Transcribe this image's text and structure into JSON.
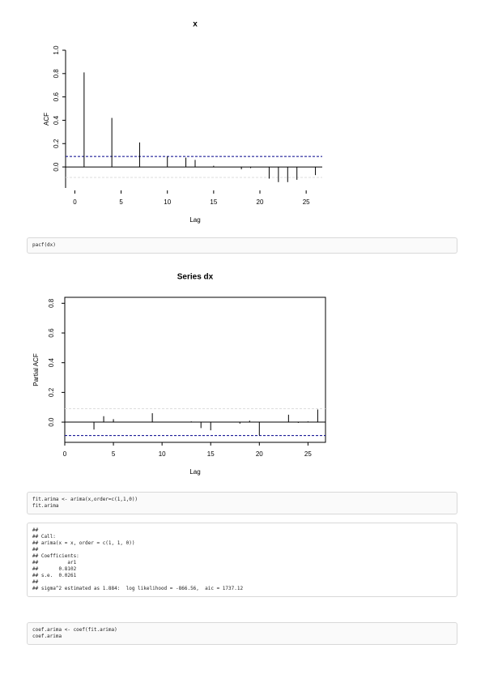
{
  "chart_data": [
    {
      "type": "stem",
      "title": "x",
      "xlabel": "Lag",
      "ylabel": "ACF",
      "color": "#000000",
      "x": [
        1,
        2,
        3,
        4,
        5,
        6,
        7,
        8,
        9,
        10,
        11,
        12,
        13,
        14,
        15,
        16,
        17,
        18,
        19,
        20,
        21,
        22,
        23,
        24,
        25,
        26
      ],
      "values": [
        0.81,
        0,
        0,
        0.42,
        0,
        0,
        0.21,
        0,
        0,
        0.09,
        0,
        0.08,
        0.06,
        0,
        0.01,
        0,
        0,
        -0.02,
        -0.01,
        0,
        -0.1,
        -0.13,
        -0.13,
        -0.11,
        0,
        -0.07
      ],
      "xlim": [
        -1,
        27
      ],
      "ylim": [
        -0.18,
        1.0
      ],
      "xticks": [
        0,
        5,
        10,
        15,
        20,
        25
      ],
      "yticks": [
        {
          "value": 0,
          "label": "0.0"
        },
        0.2,
        0.4,
        0.6,
        0.8,
        {
          "value": 1,
          "label": "1.0"
        }
      ],
      "ci_lines": [
        {
          "value": 0.09,
          "color": "#00008b"
        },
        {
          "value": -0.09,
          "color": "#dddddd"
        }
      ],
      "box": false
    },
    {
      "type": "stem",
      "title": "Series  dx",
      "xlabel": "Lag",
      "ylabel": "Partial ACF",
      "color": "#000000",
      "x": [
        1,
        2,
        3,
        4,
        5,
        6,
        7,
        8,
        9,
        10,
        11,
        12,
        13,
        14,
        15,
        16,
        17,
        18,
        19,
        20,
        21,
        22,
        23,
        24,
        25,
        26
      ],
      "values": [
        null,
        0,
        -0.05,
        0.04,
        0.02,
        0,
        0,
        0,
        0.06,
        0,
        0,
        0,
        0.005,
        -0.04,
        -0.055,
        0,
        0,
        -0.01,
        0.01,
        -0.09,
        0,
        0,
        0.05,
        -0.005,
        0.005,
        0.085
      ],
      "xlim": [
        0,
        26.8
      ],
      "ylim": [
        -0.136,
        0.84
      ],
      "xticks": [
        0,
        5,
        10,
        15,
        20,
        25
      ],
      "yticks": [
        {
          "value": 0,
          "label": "0.0"
        },
        0.2,
        0.4,
        0.6,
        0.8
      ],
      "ci_lines": [
        {
          "value": -0.09,
          "color": "#00008b"
        },
        {
          "value": 0.09,
          "color": "#dddddd"
        }
      ],
      "box": true
    }
  ],
  "blocks": [
    {
      "kind": "code",
      "lines": [
        "pacf(dx)"
      ]
    },
    {
      "kind": "code",
      "lines": [
        "fit.arima <- arima(x,order=c(1,1,0))",
        "fit.arima"
      ]
    },
    {
      "kind": "output",
      "lines": [
        "##",
        "## Call:",
        "## arima(x = x, order = c(1, 1, 0))",
        "##",
        "## Coefficients:",
        "##          ar1",
        "##       0.8102",
        "## s.e.  0.0261",
        "##",
        "## sigma^2 estimated as 1.884:  log likelihood = -866.56,  aic = 1737.12"
      ]
    },
    {
      "kind": "code",
      "lines": [
        "coef.arima <- coef(fit.arima)",
        "coef.arima"
      ]
    }
  ]
}
